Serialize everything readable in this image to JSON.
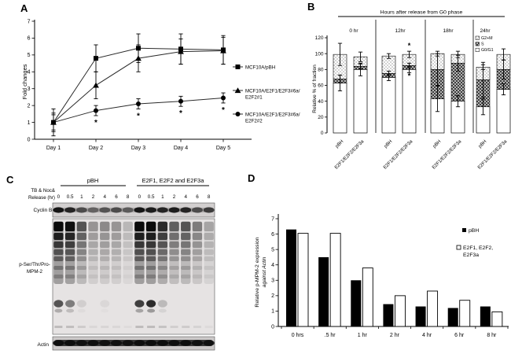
{
  "figure": {
    "background": "#ffffff",
    "foreground": "#000000"
  },
  "panels": {
    "A": "A",
    "B": "B",
    "C": "C",
    "D": "D"
  },
  "chart_data": [
    {
      "id": "A",
      "type": "line",
      "title": "",
      "xlabel": "",
      "ylabel": "Fold changes",
      "ylim": [
        0,
        7
      ],
      "yticks": [
        0,
        1,
        2,
        3,
        4,
        5,
        6,
        7
      ],
      "categories": [
        "Day 1",
        "Day 2",
        "Day 3",
        "Day 4",
        "Day 5"
      ],
      "grid": false,
      "legend_position": "right",
      "series": [
        {
          "name": "MCF10A/pBH",
          "name2": "",
          "marker": "square",
          "values": [
            1.0,
            4.8,
            5.4,
            5.35,
            5.3
          ],
          "err": [
            0.8,
            0.8,
            0.85,
            0.9,
            0.85
          ]
        },
        {
          "name": "MCF10A/E2F1/E2F3#6a/",
          "name2": "E2F2#1",
          "marker": "triangle",
          "values": [
            1.0,
            3.2,
            4.8,
            5.2,
            5.25
          ],
          "err": [
            0.55,
            0.8,
            0.8,
            0.75,
            0.8
          ]
        },
        {
          "name": "MCF10A/E2F1/E2F3#6a/",
          "name2": "E2F2#2",
          "marker": "circle",
          "values": [
            1.0,
            1.7,
            2.1,
            2.25,
            2.45
          ],
          "err": [
            0.45,
            0.3,
            0.3,
            0.3,
            0.3
          ]
        }
      ],
      "asterisk_series_index": 2,
      "asterisk_category_indices": [
        1,
        2,
        3,
        4
      ],
      "asterisk_symbol": "*"
    },
    {
      "id": "B",
      "type": "stacked-bar",
      "title": "Hours after release from G0 phase",
      "ylabel": "Relative % of fraction",
      "ylim": [
        0,
        120
      ],
      "yticks": [
        0,
        20,
        40,
        60,
        80,
        100,
        120
      ],
      "groups": [
        "0 hr",
        "12hr",
        "18hr",
        "24hr"
      ],
      "bar_labels": [
        "pBH",
        "E2F1/E2F2/E2F3a"
      ],
      "legend": [
        {
          "name": "G2+M",
          "pattern": "dots"
        },
        {
          "name": "S",
          "pattern": "checker"
        },
        {
          "name": "G0/G1",
          "pattern": "white"
        }
      ],
      "bars": [
        {
          "group": "0 hr",
          "label": "pBH",
          "G0G1": 63,
          "S": 5,
          "G2M": 31,
          "err": [
            10,
            5,
            14
          ]
        },
        {
          "group": "0 hr",
          "label": "E2F1/E2F2/E2F3a",
          "G0G1": 80,
          "S": 4,
          "G2M": 12,
          "err": [
            8,
            3,
            6
          ]
        },
        {
          "group": "12hr",
          "label": "pBH",
          "G0G1": 70,
          "S": 5,
          "G2M": 22,
          "err": [
            4,
            3,
            3
          ]
        },
        {
          "group": "12hr",
          "label": "E2F1/E2F2/E2F3a",
          "G0G1": 80,
          "S": 5,
          "G2M": 14,
          "err": [
            4,
            3,
            4
          ]
        },
        {
          "group": "18hr",
          "label": "pBH",
          "G0G1": 43,
          "S": 37,
          "G2M": 20,
          "err": [
            16,
            20,
            3
          ]
        },
        {
          "group": "18hr",
          "label": "E2F1/E2F2/E2F3a",
          "G0G1": 40,
          "S": 48,
          "G2M": 11,
          "err": [
            7,
            10,
            4
          ]
        },
        {
          "group": "24hr",
          "label": "pBH",
          "G0G1": 33,
          "S": 34,
          "G2M": 16,
          "err": [
            10,
            22,
            3
          ]
        },
        {
          "group": "24hr",
          "label": "E2F1/E2F2/E2F3a",
          "G0G1": 55,
          "S": 25,
          "G2M": 19,
          "err": [
            7,
            12,
            7
          ]
        }
      ],
      "asterisks": [
        {
          "bar_index": 3,
          "y": 110
        },
        {
          "bar_index": 3,
          "y": 72
        }
      ],
      "asterisk_symbol": "*"
    },
    {
      "id": "D",
      "type": "bar",
      "title": "",
      "ylabel_line1": "Relative p-MPM-2 expression",
      "ylabel_line2": "against Actin",
      "ylim": [
        0,
        7
      ],
      "yticks": [
        0,
        1,
        2,
        3,
        4,
        5,
        6,
        7
      ],
      "categories": [
        "0 hrs",
        ".5 hr",
        "1 hr",
        "2 hr",
        "4 hr",
        "6 hr",
        "8 hr"
      ],
      "grid": false,
      "legend_position": "upper-right",
      "series": [
        {
          "name": "pBH",
          "name2": "",
          "fill": "#000000",
          "values": [
            6.3,
            4.5,
            3.0,
            1.45,
            1.3,
            1.2,
            1.3
          ]
        },
        {
          "name": "E2F1, E2F2,",
          "name2": "E2F3a",
          "fill": "#ffffff",
          "values": [
            6.05,
            6.05,
            3.8,
            2.0,
            2.3,
            1.7,
            0.95
          ]
        }
      ]
    }
  ],
  "western_blot": {
    "id": "C",
    "treatment_label_line1": "TB & Noc&",
    "treatment_label_line2": "Release (hr)",
    "group_headers": [
      "pBH",
      "E2F1, E2F2 and E2F3a"
    ],
    "lane_times": [
      "0",
      "0.5",
      "1",
      "2",
      "4",
      "6",
      "8",
      "0",
      "0.5",
      "1",
      "2",
      "4",
      "6",
      "8"
    ],
    "rows": {
      "cyclinB1": {
        "label": "Cyclin B1",
        "intensities": [
          0.95,
          0.85,
          0.6,
          0.45,
          0.55,
          0.6,
          0.5,
          0.95,
          0.9,
          0.85,
          0.9,
          0.85,
          0.6,
          0.7
        ]
      },
      "mpm2": {
        "label_line1": "p-Ser/Thr/Pro-",
        "label_line2": "MPM-2",
        "intensities": [
          0.95,
          0.9,
          0.55,
          0.28,
          0.32,
          0.28,
          0.15,
          0.95,
          0.95,
          0.75,
          0.5,
          0.55,
          0.38,
          0.22
        ],
        "spots": [
          0.7,
          0.5,
          0.1,
          0,
          0.05,
          0,
          0,
          0.8,
          0.9,
          0.2,
          0,
          0,
          0,
          0
        ]
      },
      "actin": {
        "label": "Actin",
        "intensities": [
          0.9,
          0.9,
          0.85,
          0.9,
          0.85,
          0.85,
          0.85,
          0.9,
          0.9,
          0.9,
          0.9,
          0.9,
          0.85,
          0.85
        ]
      }
    }
  }
}
